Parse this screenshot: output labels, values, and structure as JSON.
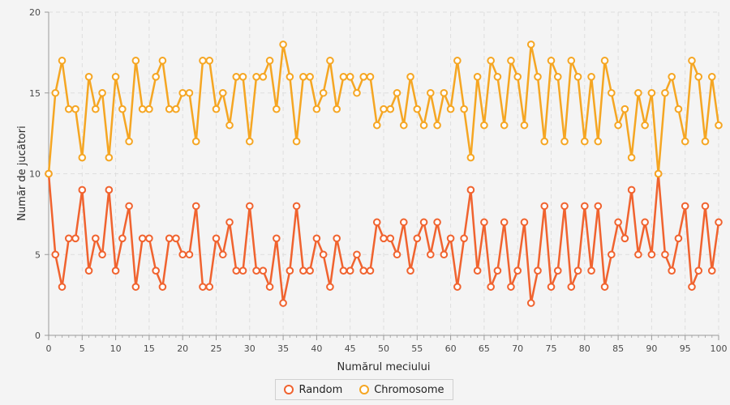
{
  "chart_data": {
    "type": "line",
    "title": "",
    "xlabel": "Numărul meciului",
    "ylabel": "Număr de jucători",
    "xlim": [
      0,
      100
    ],
    "ylim": [
      0,
      20
    ],
    "x_ticks": [
      0,
      5,
      10,
      15,
      20,
      25,
      30,
      35,
      40,
      45,
      50,
      55,
      60,
      65,
      70,
      75,
      80,
      85,
      90,
      95,
      100
    ],
    "y_ticks": [
      0,
      5,
      10,
      15,
      20
    ],
    "grid": true,
    "legend_position": "bottom-center",
    "x": [
      0,
      1,
      2,
      3,
      4,
      5,
      6,
      7,
      8,
      9,
      10,
      11,
      12,
      13,
      14,
      15,
      16,
      17,
      18,
      19,
      20,
      21,
      22,
      23,
      24,
      25,
      26,
      27,
      28,
      29,
      30,
      31,
      32,
      33,
      34,
      35,
      36,
      37,
      38,
      39,
      40,
      41,
      42,
      43,
      44,
      45,
      46,
      47,
      48,
      49,
      50,
      51,
      52,
      53,
      54,
      55,
      56,
      57,
      58,
      59,
      60,
      61,
      62,
      63,
      64,
      65,
      66,
      67,
      68,
      69,
      70,
      71,
      72,
      73,
      74,
      75,
      76,
      77,
      78,
      79,
      80,
      81,
      82,
      83,
      84,
      85,
      86,
      87,
      88,
      89,
      90,
      91,
      92,
      93,
      94,
      95,
      96,
      97,
      98,
      99,
      100
    ],
    "series": [
      {
        "name": "Random",
        "color": "#f0632f",
        "values": [
          10,
          5,
          3,
          6,
          6,
          9,
          4,
          6,
          5,
          9,
          4,
          6,
          8,
          3,
          6,
          6,
          4,
          3,
          6,
          6,
          5,
          5,
          8,
          3,
          3,
          6,
          5,
          7,
          4,
          4,
          8,
          4,
          4,
          3,
          6,
          2,
          4,
          8,
          4,
          4,
          6,
          5,
          3,
          6,
          4,
          4,
          5,
          4,
          4,
          7,
          6,
          6,
          5,
          7,
          4,
          6,
          7,
          5,
          7,
          5,
          6,
          3,
          6,
          9,
          4,
          7,
          3,
          4,
          7,
          3,
          4,
          7,
          2,
          4,
          8,
          3,
          4,
          8,
          3,
          4,
          8,
          4,
          8,
          3,
          5,
          7,
          6,
          9,
          5,
          7,
          5,
          10,
          5,
          4,
          6,
          8,
          3,
          4,
          8,
          4,
          7
        ]
      },
      {
        "name": "Chromosome",
        "color": "#f5a623",
        "values": [
          10,
          15,
          17,
          14,
          14,
          11,
          16,
          14,
          15,
          11,
          16,
          14,
          12,
          17,
          14,
          14,
          16,
          17,
          14,
          14,
          15,
          15,
          12,
          17,
          17,
          14,
          15,
          13,
          16,
          16,
          12,
          16,
          16,
          17,
          14,
          18,
          16,
          12,
          16,
          16,
          14,
          15,
          17,
          14,
          16,
          16,
          15,
          16,
          16,
          13,
          14,
          14,
          15,
          13,
          16,
          14,
          13,
          15,
          13,
          15,
          14,
          17,
          14,
          11,
          16,
          13,
          17,
          16,
          13,
          17,
          16,
          13,
          18,
          16,
          12,
          17,
          16,
          12,
          17,
          16,
          12,
          16,
          12,
          17,
          15,
          13,
          14,
          11,
          15,
          13,
          15,
          10,
          15,
          16,
          14,
          12,
          17,
          16,
          12,
          16,
          13
        ]
      }
    ]
  }
}
